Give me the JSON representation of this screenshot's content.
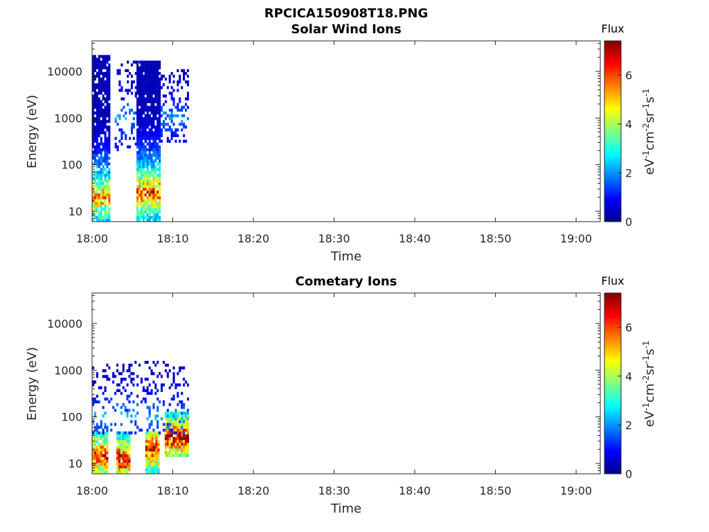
{
  "figure_title": "RPCICA150908T18.PNG",
  "chart_data": [
    {
      "type": "heatmap",
      "title": "Solar Wind Ions",
      "xlabel": "Time",
      "ylabel": "Energy (eV)",
      "x_ticks": [
        "18:00",
        "18:10",
        "18:20",
        "18:30",
        "18:40",
        "18:50",
        "19:00"
      ],
      "y_ticks": [
        "10",
        "100",
        "1000",
        "10000"
      ],
      "y_scale": "log",
      "x_range": [
        "18:00",
        "19:03"
      ],
      "y_range": [
        6,
        45000
      ],
      "colorbar": {
        "title": "Flux",
        "label": "eV-1cm-2sr-1s-1",
        "range": [
          0,
          7.4
        ],
        "ticks": [
          "0",
          "2",
          "4",
          "6"
        ],
        "colormap": "jet"
      },
      "clusters": [
        {
          "t": [
            0.0,
            2.2
          ],
          "e": [
            6,
            20000
          ],
          "peak": 6.0,
          "peak_e": 20,
          "density": 0.85
        },
        {
          "t": [
            2.8,
            7.2
          ],
          "e": [
            200,
            16000
          ],
          "peak": 2.2,
          "peak_e": 1000,
          "density": 0.25
        },
        {
          "t": [
            5.5,
            8.5
          ],
          "e": [
            6,
            16000
          ],
          "peak": 6.5,
          "peak_e": 25,
          "density": 0.9
        },
        {
          "t": [
            8.5,
            11.8
          ],
          "e": [
            300,
            10000
          ],
          "peak": 2.0,
          "peak_e": 1000,
          "density": 0.35
        }
      ]
    },
    {
      "type": "heatmap",
      "title": "Cometary Ions",
      "xlabel": "Time",
      "ylabel": "Energy (eV)",
      "x_ticks": [
        "18:00",
        "18:10",
        "18:20",
        "18:30",
        "18:40",
        "18:50",
        "19:00"
      ],
      "y_ticks": [
        "10",
        "100",
        "1000",
        "10000"
      ],
      "y_scale": "log",
      "x_range": [
        "18:00",
        "19:03"
      ],
      "y_range": [
        6,
        45000
      ],
      "colorbar": {
        "title": "Flux",
        "label": "eV-1cm-2sr-1s-1",
        "range": [
          0,
          7.4
        ],
        "ticks": [
          "0",
          "2",
          "4",
          "6"
        ],
        "colormap": "jet"
      },
      "clusters": [
        {
          "t": [
            0.0,
            1.8
          ],
          "e": [
            6,
            45
          ],
          "peak": 6.8,
          "peak_e": 15,
          "density": 0.95
        },
        {
          "t": [
            3.0,
            4.7
          ],
          "e": [
            6,
            45
          ],
          "peak": 7.2,
          "peak_e": 12,
          "density": 0.95
        },
        {
          "t": [
            6.6,
            8.2
          ],
          "e": [
            6,
            45
          ],
          "peak": 7.0,
          "peak_e": 20,
          "density": 0.95
        },
        {
          "t": [
            9.0,
            11.8
          ],
          "e": [
            15,
            120
          ],
          "peak": 7.3,
          "peak_e": 35,
          "density": 0.95
        },
        {
          "t": [
            0.0,
            11.8
          ],
          "e": [
            45,
            1400
          ],
          "peak": 2.2,
          "peak_e": 100,
          "density": 0.22
        }
      ]
    }
  ]
}
